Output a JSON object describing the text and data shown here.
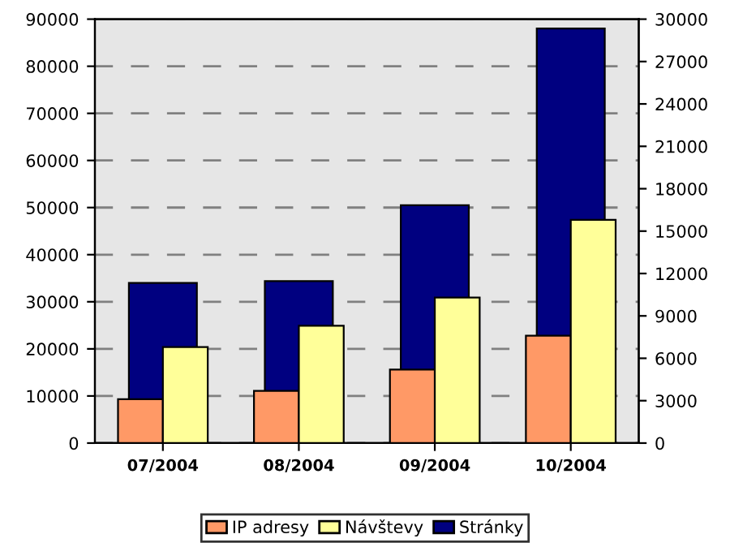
{
  "chart_data": {
    "type": "bar",
    "categories": [
      "07/2004",
      "08/2004",
      "09/2004",
      "10/2004"
    ],
    "series": [
      {
        "name": "IP adresy",
        "color": "#ff9966",
        "values": [
          3100,
          3700,
          5200,
          7600
        ],
        "axis": "y2"
      },
      {
        "name": "Návštevy",
        "color": "#ffff99",
        "values": [
          6800,
          8300,
          10300,
          15800
        ],
        "axis": "y2"
      },
      {
        "name": "Stránky",
        "color": "#000080",
        "values": [
          34000,
          34400,
          50500,
          88000
        ]
      }
    ],
    "ylim": [
      0,
      90000
    ],
    "yticks": [
      0,
      10000,
      20000,
      30000,
      40000,
      50000,
      60000,
      70000,
      80000,
      90000
    ],
    "y2lim": [
      0,
      30000
    ],
    "y2ticks": [
      0,
      3000,
      6000,
      9000,
      12000,
      15000,
      18000,
      21000,
      24000,
      27000,
      30000
    ],
    "grid": "y",
    "legend": "bottom"
  }
}
